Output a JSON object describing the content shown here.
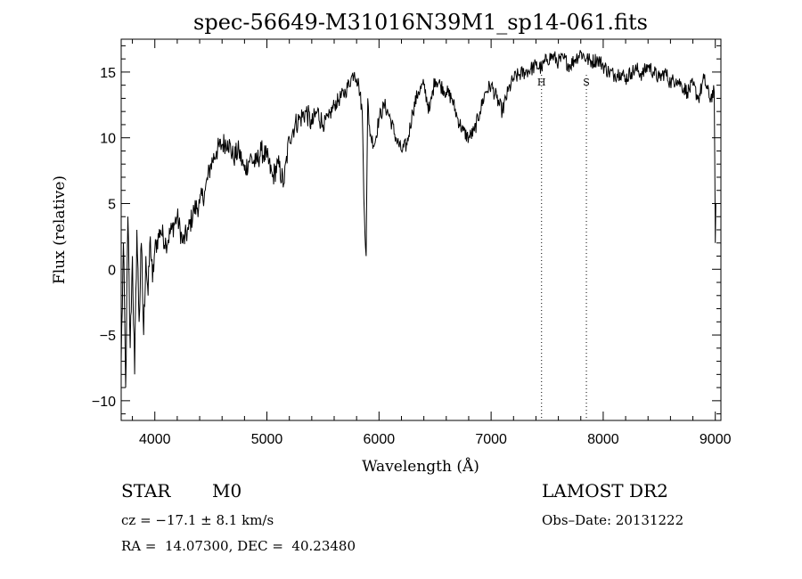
{
  "chart_data": {
    "type": "line",
    "title": "spec-56649-M31016N39M1_sp14-061.fits",
    "xlabel": "Wavelength (Å)",
    "ylabel": "Flux (relative)",
    "xlim": [
      3700,
      9050
    ],
    "ylim": [
      -11.5,
      17.5
    ],
    "xticks": [
      "4000",
      "5000",
      "6000",
      "7000",
      "8000",
      "9000"
    ],
    "yticks": [
      "−10",
      "−5",
      "0",
      "5",
      "10",
      "15"
    ],
    "grid": false,
    "annotations": [
      {
        "label": "H",
        "x": 7450
      },
      {
        "label": "S",
        "x": 7850
      }
    ],
    "series": [
      {
        "x": [
          3700,
          3720,
          3740,
          3760,
          3780,
          3800,
          3820,
          3840,
          3860,
          3880,
          3900,
          3920,
          3940,
          3960,
          3980,
          4000,
          4050,
          4100,
          4150,
          4200,
          4250,
          4300,
          4350,
          4400,
          4450,
          4500,
          4550,
          4600,
          4650,
          4700,
          4750,
          4800,
          4850,
          4900,
          4950,
          5000,
          5050,
          5100,
          5150,
          5200,
          5250,
          5300,
          5350,
          5400,
          5450,
          5500,
          5550,
          5600,
          5650,
          5700,
          5750,
          5780,
          5800,
          5820,
          5850,
          5870,
          5885,
          5893,
          5900,
          5910,
          5930,
          5960,
          6000,
          6050,
          6100,
          6150,
          6200,
          6250,
          6300,
          6350,
          6400,
          6450,
          6500,
          6550,
          6600,
          6650,
          6700,
          6750,
          6800,
          6850,
          6900,
          6950,
          7000,
          7050,
          7100,
          7150,
          7200,
          7250,
          7300,
          7350,
          7400,
          7450,
          7500,
          7550,
          7600,
          7650,
          7700,
          7750,
          7800,
          7850,
          7900,
          7950,
          8000,
          8050,
          8100,
          8150,
          8200,
          8250,
          8300,
          8350,
          8400,
          8450,
          8500,
          8550,
          8600,
          8650,
          8700,
          8750,
          8800,
          8850,
          8900,
          8950,
          8990,
          9000,
          9005
        ],
        "y": [
          -7,
          2,
          -9,
          4,
          -6,
          1,
          -8,
          3,
          -4,
          2,
          -5,
          1,
          -2,
          2.5,
          -1,
          1.5,
          3,
          2,
          3,
          4,
          2,
          3,
          4.5,
          5,
          6,
          8,
          9,
          9.5,
          9.8,
          8.5,
          9,
          7.5,
          8.5,
          8,
          9,
          8.5,
          7,
          8,
          6.5,
          10,
          11,
          11.5,
          12,
          11,
          12,
          11,
          11.5,
          12.5,
          13,
          13.5,
          14.5,
          15,
          14.5,
          14,
          12,
          4,
          1,
          8,
          13,
          11,
          10,
          9.5,
          11.5,
          12.5,
          11.5,
          10,
          9,
          9.5,
          12,
          13.5,
          14,
          12,
          14.5,
          14,
          13.5,
          13,
          11.5,
          10.5,
          10,
          10.5,
          12,
          13.5,
          14,
          13,
          12,
          13.5,
          14.5,
          14.8,
          15,
          15.2,
          15.5,
          15.3,
          16,
          16.2,
          15.8,
          16,
          15.5,
          16,
          16.5,
          16,
          15.8,
          16,
          15.5,
          15,
          14.8,
          15,
          14.5,
          15,
          15.2,
          14.8,
          15.5,
          15,
          14.5,
          15,
          14.2,
          14.5,
          14,
          13.5,
          14,
          13,
          14.5,
          13,
          13.5,
          2,
          5
        ]
      }
    ]
  },
  "info": {
    "object_class": "STAR",
    "subclass": "M0",
    "survey": "LAMOST DR2",
    "cz": "cz = −17.1 ± 8.1 km/s",
    "obs_date": "Obs–Date: 20131222",
    "coords": "RA =  14.07300, DEC =  40.23480"
  }
}
